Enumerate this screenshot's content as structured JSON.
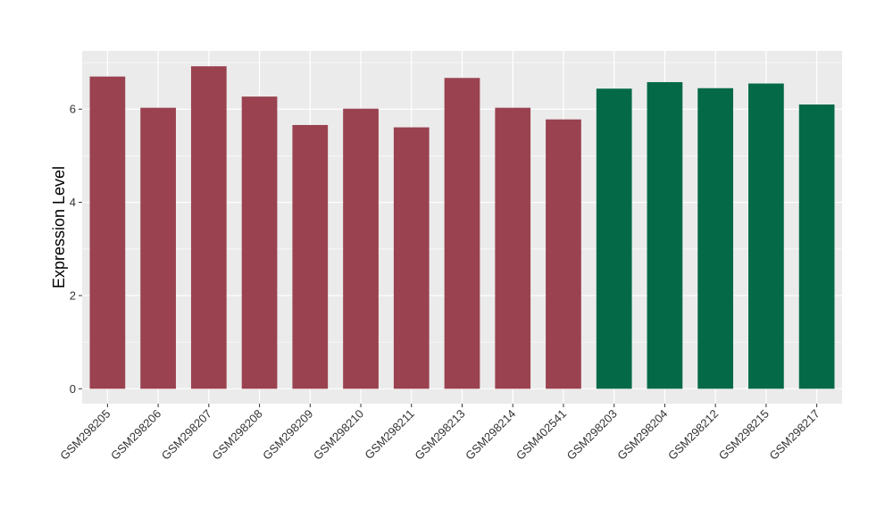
{
  "chart_data": {
    "type": "bar",
    "title": "",
    "xlabel": "",
    "ylabel": "Expression Level",
    "ylim": [
      -0.32,
      7.25
    ],
    "yticks": [
      0,
      2,
      4,
      6
    ],
    "grid": true,
    "legend": "none",
    "categories": [
      "GSM298205",
      "GSM298206",
      "GSM298207",
      "GSM298208",
      "GSM298209",
      "GSM298210",
      "GSM298211",
      "GSM298213",
      "GSM298214",
      "GSM402541",
      "GSM298203",
      "GSM298204",
      "GSM298212",
      "GSM298215",
      "GSM298217"
    ],
    "values": [
      6.7,
      6.03,
      6.92,
      6.27,
      5.66,
      6.01,
      5.61,
      6.67,
      6.03,
      5.78,
      6.44,
      6.58,
      6.45,
      6.55,
      6.1
    ],
    "bar_colors": [
      "#9a4250",
      "#9a4250",
      "#9a4250",
      "#9a4250",
      "#9a4250",
      "#9a4250",
      "#9a4250",
      "#9a4250",
      "#9a4250",
      "#9a4250",
      "#036947",
      "#036947",
      "#036947",
      "#036947",
      "#036947"
    ]
  },
  "colors": {
    "panel_background": "#ebebeb",
    "gridline": "#ffffff",
    "group_a": "#9a4250",
    "group_b": "#036947"
  }
}
